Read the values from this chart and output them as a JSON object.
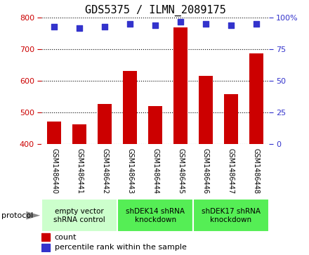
{
  "title": "GDS5375 / ILMN_2089175",
  "categories": [
    "GSM1486440",
    "GSM1486441",
    "GSM1486442",
    "GSM1486443",
    "GSM1486444",
    "GSM1486445",
    "GSM1486446",
    "GSM1486447",
    "GSM1486448"
  ],
  "count_values": [
    472,
    462,
    526,
    632,
    521,
    770,
    617,
    559,
    687
  ],
  "percentile_values": [
    93,
    92,
    93,
    95,
    94,
    97,
    95,
    94,
    95
  ],
  "ylim_left": [
    400,
    800
  ],
  "ylim_right": [
    0,
    100
  ],
  "yticks_left": [
    400,
    500,
    600,
    700,
    800
  ],
  "yticks_right": [
    0,
    25,
    50,
    75,
    100
  ],
  "yticklabels_right": [
    "0",
    "25",
    "50",
    "75",
    "100%"
  ],
  "bar_color": "#cc0000",
  "dot_color": "#3333cc",
  "label_bg_color": "#d0d0d0",
  "groups": [
    {
      "label": "empty vector\nshRNA control",
      "start": 0,
      "end": 2,
      "color": "#ccffcc"
    },
    {
      "label": "shDEK14 shRNA\nknockdown",
      "start": 3,
      "end": 5,
      "color": "#55ee55"
    },
    {
      "label": "shDEK17 shRNA\nknockdown",
      "start": 6,
      "end": 8,
      "color": "#55ee55"
    }
  ],
  "legend_count_label": "count",
  "legend_pct_label": "percentile rank within the sample",
  "protocol_label": "protocol",
  "title_fontsize": 11,
  "tick_fontsize": 8,
  "group_fontsize": 7.5,
  "legend_fontsize": 8
}
